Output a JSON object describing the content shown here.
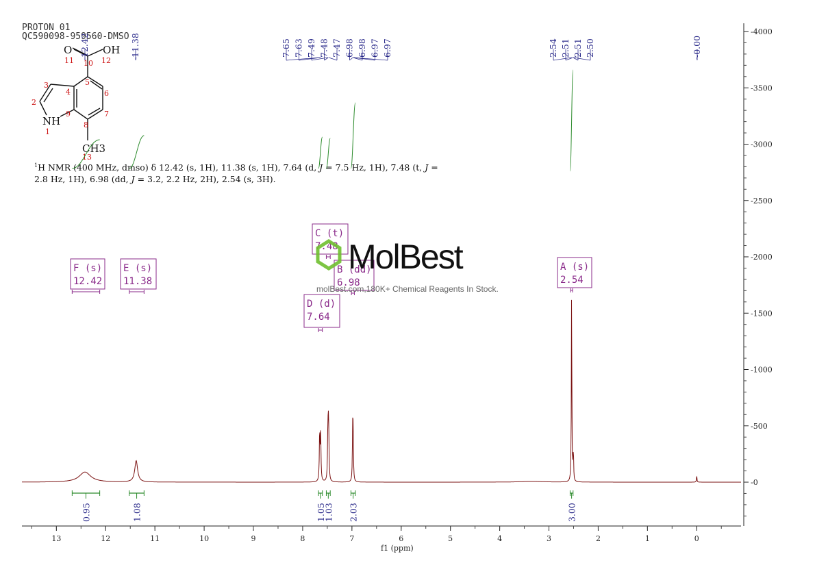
{
  "header": {
    "line1": "PROTON 01",
    "line2": "QC590098-959560-DMSO"
  },
  "nmr_text": {
    "line1_parts": [
      "H NMR (400 MHz, dmso) δ 12.42 (s, 1H), 11.38 (s, 1H), 7.64 (d, ",
      "J",
      " = 7.5 Hz, 1H), 7.48 (t, ",
      "J",
      " ="
    ],
    "sup": "1",
    "line2_parts": [
      "2.8 Hz, 1H), 6.98 (dd, ",
      "J",
      " = 3.2, 2.2 Hz, 2H), 2.54 (s, 3H)."
    ]
  },
  "structure": {
    "labels": [
      "O",
      "OH",
      "NH",
      "CH3"
    ],
    "numbers": [
      "1",
      "2",
      "3",
      "4",
      "5",
      "6",
      "7",
      "8",
      "9",
      "10",
      "11",
      "12",
      "13"
    ]
  },
  "watermark": {
    "brand": "MolBest",
    "tagline": "molBest.com,180K+ Chemical Reagents In Stock."
  },
  "colors": {
    "spectrum": "#7a1010",
    "integral": "#2a8a2a",
    "peak_label": "#2a2a8a",
    "multiplet": "#8a2a8a",
    "brand": "#111111",
    "brand_hex": "#6fbf2f"
  },
  "chart_data": {
    "type": "line",
    "xlabel": "f1 (ppm)",
    "x_ticks": [
      13,
      12,
      11,
      10,
      9,
      8,
      7,
      6,
      5,
      4,
      3,
      2,
      1,
      0
    ],
    "xlim": [
      13.7,
      -0.9
    ],
    "x_reversed": true,
    "y_ticks": [
      4000,
      3500,
      3000,
      2500,
      2000,
      1500,
      1000,
      500,
      0
    ],
    "ylim": [
      -400,
      4100
    ],
    "peak_labels": [
      {
        "group": [
          12.42,
          11.38
        ],
        "labels": [
          "12.42",
          "11.38"
        ]
      },
      {
        "group": [
          7.65,
          7.63,
          7.49,
          7.48,
          7.47,
          6.98,
          6.98,
          6.97,
          6.97
        ],
        "labels": [
          "7.65",
          "7.63",
          "7.49",
          "7.48",
          "7.47",
          "6.98",
          "6.98",
          "6.97",
          "6.97"
        ]
      },
      {
        "group": [
          2.54,
          2.51,
          2.51,
          2.5
        ],
        "labels": [
          "2.54",
          "2.51",
          "2.51",
          "2.50"
        ]
      },
      {
        "group": [
          0.0
        ],
        "labels": [
          "-0.00"
        ]
      }
    ],
    "peaks": [
      {
        "ppm": 12.42,
        "height": 90,
        "width": 0.14
      },
      {
        "ppm": 11.38,
        "height": 190,
        "width": 0.035
      },
      {
        "ppm": 7.655,
        "height": 430,
        "width": 0.008
      },
      {
        "ppm": 7.635,
        "height": 420,
        "width": 0.008
      },
      {
        "ppm": 7.49,
        "height": 300,
        "width": 0.008
      },
      {
        "ppm": 7.48,
        "height": 420,
        "width": 0.008
      },
      {
        "ppm": 7.47,
        "height": 300,
        "width": 0.008
      },
      {
        "ppm": 6.985,
        "height": 430,
        "width": 0.007
      },
      {
        "ppm": 6.975,
        "height": 400,
        "width": 0.007
      },
      {
        "ppm": 3.35,
        "height": 8,
        "width": 0.25
      },
      {
        "ppm": 2.54,
        "height": 1700,
        "width": 0.006
      },
      {
        "ppm": 2.51,
        "height": 230,
        "width": 0.005
      },
      {
        "ppm": 2.5,
        "height": 150,
        "width": 0.005
      },
      {
        "ppm": 0.0,
        "height": 60,
        "width": 0.006
      }
    ],
    "multiplets": [
      {
        "id": "F",
        "mult": "s",
        "shift": "12.42",
        "range": [
          12.68,
          12.12
        ]
      },
      {
        "id": "E",
        "mult": "s",
        "shift": "11.38",
        "range": [
          11.52,
          11.22
        ]
      },
      {
        "id": "C",
        "mult": "t",
        "shift": "7.48",
        "range": [
          7.52,
          7.44
        ]
      },
      {
        "id": "B",
        "mult": "dd",
        "shift": "6.98",
        "range": [
          7.01,
          6.95
        ]
      },
      {
        "id": "D",
        "mult": "d",
        "shift": "7.64",
        "range": [
          7.68,
          7.6
        ]
      },
      {
        "id": "A",
        "mult": "s",
        "shift": "2.54",
        "range": [
          2.56,
          2.52
        ]
      }
    ],
    "integrals": [
      {
        "value": "0.95",
        "range": [
          12.68,
          12.12
        ]
      },
      {
        "value": "1.08",
        "range": [
          11.52,
          11.22
        ]
      },
      {
        "value": "1.05",
        "range": [
          7.68,
          7.6
        ]
      },
      {
        "value": "1.03",
        "range": [
          7.52,
          7.44
        ]
      },
      {
        "value": "2.03",
        "range": [
          7.02,
          6.93
        ]
      },
      {
        "value": "3.00",
        "range": [
          2.57,
          2.51
        ]
      }
    ]
  }
}
